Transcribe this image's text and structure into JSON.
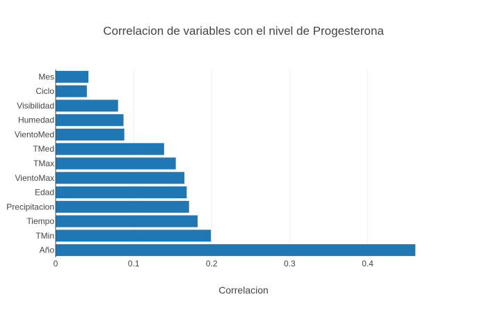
{
  "chart_data": {
    "type": "bar",
    "orientation": "horizontal",
    "title": "Correlacion de variables con el nivel de Progesterona",
    "xlabel": "Correlacion",
    "ylabel": "",
    "categories": [
      "Mes",
      "Ciclo",
      "Visibilidad",
      "Humedad",
      "VientoMed",
      "TMed",
      "TMax",
      "VientoMax",
      "Edad",
      "Precipitacion",
      "Tiempo",
      "TMin",
      "Año"
    ],
    "values": [
      0.042,
      0.04,
      0.08,
      0.087,
      0.088,
      0.139,
      0.154,
      0.165,
      0.168,
      0.171,
      0.182,
      0.199,
      0.461
    ],
    "xlim": [
      0,
      0.47
    ],
    "xticks": [
      0,
      0.1,
      0.2,
      0.3,
      0.4
    ],
    "xtick_labels": [
      "0",
      "0.1",
      "0.2",
      "0.3",
      "0.4"
    ],
    "grid": "vertical",
    "legend": "none",
    "bar_color": "#1f77b4"
  }
}
